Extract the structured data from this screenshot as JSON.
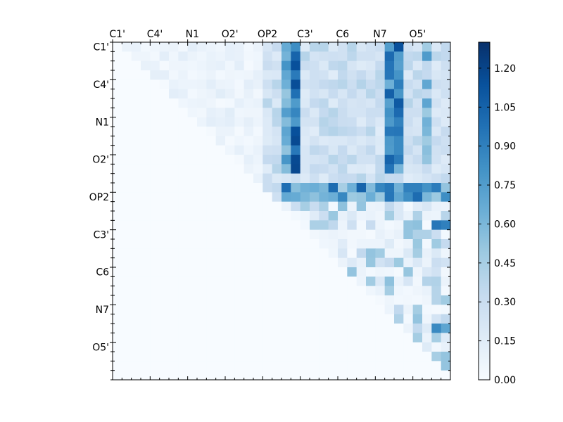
{
  "chart_data": {
    "type": "heatmap",
    "title": "",
    "xlabel": "",
    "ylabel": "",
    "x_tick_labels": [
      "C1'",
      "C4'",
      "N1",
      "O2'",
      "OP2",
      "C3'",
      "C6",
      "N7",
      "O5'"
    ],
    "y_tick_labels": [
      "C1'",
      "C4'",
      "N1",
      "O2'",
      "OP2",
      "C3'",
      "C6",
      "N7",
      "O5'"
    ],
    "grid_size": 36,
    "label_every": 4,
    "upper_triangular": true,
    "colormap": "Blues",
    "colormap_stops": [
      "#f7fbff",
      "#deebf7",
      "#c6dbef",
      "#9ecae1",
      "#6baed6",
      "#4292c6",
      "#2171b5",
      "#08519c",
      "#08306b"
    ],
    "colorbar": {
      "min": 0.0,
      "max": 1.3,
      "ticks": [
        "0.00",
        "0.15",
        "0.30",
        "0.45",
        "0.60",
        "0.75",
        "0.90",
        "1.05",
        "1.20"
      ]
    },
    "matrix_description": "values are approximate; strong column bands near C3' and rows near OP2",
    "matrix": []
  }
}
